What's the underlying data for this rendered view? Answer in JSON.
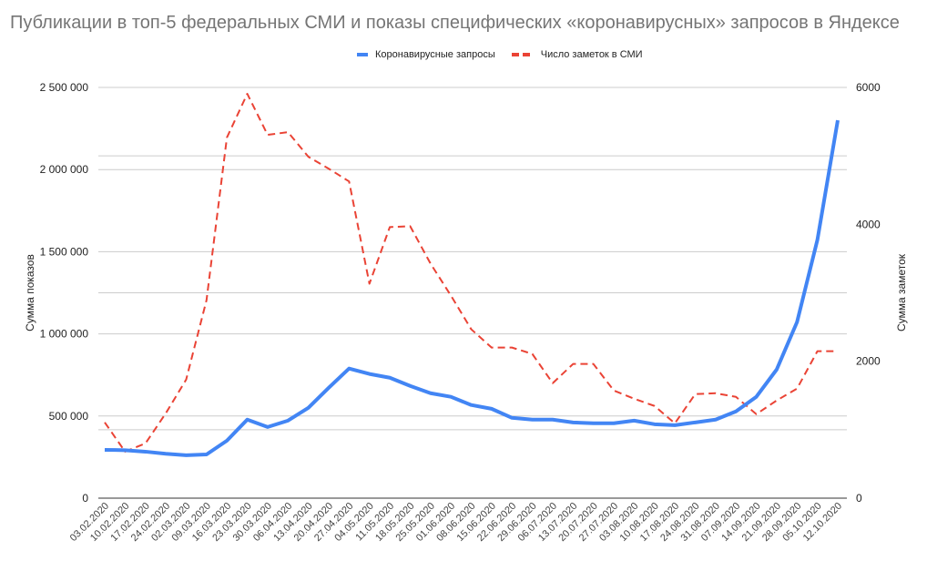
{
  "title": "Публикации в топ-5 федеральных СМИ и показы специфических «коронавирусных» запросов в Яндексе",
  "legend": [
    {
      "label": "Коронавирусные запросы",
      "color": "#4285f4",
      "style": "solid"
    },
    {
      "label": "Число заметок в СМИ",
      "color": "#ea4335",
      "style": "dashed"
    }
  ],
  "chart_data": {
    "type": "line",
    "title": "Публикации в топ-5 федеральных СМИ и показы специфических «коронавирусных» запросов в Яндексе",
    "xlabel": "",
    "ylabel": "Сумма показов",
    "ylabel_right": "Сумма заметок",
    "ylim": [
      0,
      2500000
    ],
    "ylim_right": [
      0,
      6000
    ],
    "yticks": [
      "0",
      "500 000",
      "1 000 000",
      "1 500 000",
      "2 000 000",
      "2 500 000"
    ],
    "yticks_right": [
      "0",
      "2000",
      "4000",
      "6000"
    ],
    "grid": true,
    "legend_position": "top",
    "categories": [
      "03.02.2020",
      "10.02.2020",
      "17.02.2020",
      "24.02.2020",
      "02.03.2020",
      "09.03.2020",
      "16.03.2020",
      "23.03.2020",
      "30.03.2020",
      "06.04.2020",
      "13.04.2020",
      "20.04.2020",
      "27.04.2020",
      "04.05.2020",
      "11.05.2020",
      "18.05.2020",
      "25.05.2020",
      "01.06.2020",
      "08.06.2020",
      "15.06.2020",
      "22.06.2020",
      "29.06.2020",
      "06.07.2020",
      "13.07.2020",
      "20.07.2020",
      "27.07.2020",
      "03.08.2020",
      "10.08.2020",
      "17.08.2020",
      "24.08.2020",
      "31.08.2020",
      "07.09.2020",
      "14.09.2020",
      "21.09.2020",
      "28.09.2020",
      "05.10.2020",
      "12.10.2020"
    ],
    "series": [
      {
        "name": "Коронавирусные запросы",
        "axis": "left",
        "values": [
          294000,
          292000,
          283000,
          270000,
          261000,
          266000,
          350000,
          478000,
          433000,
          472000,
          550000,
          672000,
          789000,
          756000,
          733000,
          683000,
          639000,
          617000,
          567000,
          544000,
          489000,
          478000,
          478000,
          461000,
          456000,
          456000,
          472000,
          450000,
          444000,
          461000,
          478000,
          528000,
          617000,
          783000,
          1072000,
          1572000,
          2300000
        ]
      },
      {
        "name": "Число заметок в СМИ",
        "axis": "right",
        "values": [
          1107,
          680,
          800,
          1240,
          1733,
          2893,
          5267,
          5907,
          5307,
          5347,
          4987,
          4813,
          4627,
          3133,
          3960,
          3973,
          3427,
          2960,
          2467,
          2200,
          2200,
          2107,
          1680,
          1960,
          1960,
          1573,
          1453,
          1347,
          1093,
          1520,
          1533,
          1480,
          1227,
          1427,
          1600,
          2147,
          2147
        ]
      }
    ]
  }
}
